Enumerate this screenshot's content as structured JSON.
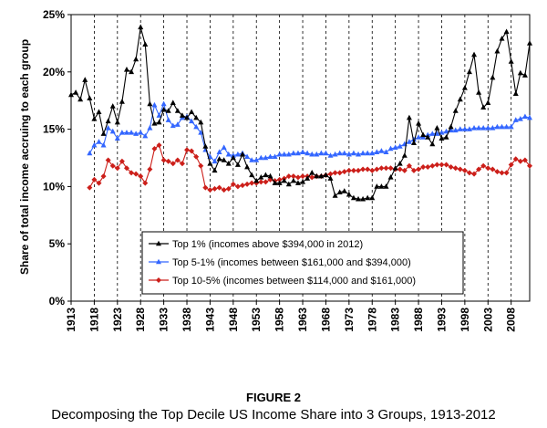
{
  "figure_label": "FIGURE 2",
  "caption": "Decomposing the Top Decile US Income Share into 3 Groups, 1913-2012",
  "chart_data": {
    "type": "line",
    "ylabel": "Share of total income accruing to each group",
    "xlabel": "",
    "ylim": [
      0,
      25
    ],
    "xlim": [
      1913,
      2012
    ],
    "y_ticks": [
      "0%",
      "5%",
      "10%",
      "15%",
      "20%",
      "25%"
    ],
    "y_tick_values": [
      0,
      5,
      10,
      15,
      20,
      25
    ],
    "x_tick_labels": [
      "1913",
      "1918",
      "1923",
      "1928",
      "1933",
      "1938",
      "1943",
      "1948",
      "1953",
      "1958",
      "1963",
      "1968",
      "1973",
      "1978",
      "1983",
      "1988",
      "1993",
      "1998",
      "2003",
      "2008"
    ],
    "x_tick_values": [
      1913,
      1918,
      1923,
      1928,
      1933,
      1938,
      1943,
      1948,
      1953,
      1958,
      1963,
      1968,
      1973,
      1978,
      1983,
      1988,
      1993,
      1998,
      2003,
      2008
    ],
    "grid": "dashed vertical lines at x ticks",
    "legend_position": "bottom-left",
    "series": [
      {
        "name": "Top 1% (incomes above $394,000 in 2012)",
        "color": "#000000",
        "marker": "triangle",
        "x": [
          1913,
          1914,
          1915,
          1916,
          1917,
          1918,
          1919,
          1920,
          1921,
          1922,
          1923,
          1924,
          1925,
          1926,
          1927,
          1928,
          1929,
          1930,
          1931,
          1932,
          1933,
          1934,
          1935,
          1936,
          1937,
          1938,
          1939,
          1940,
          1941,
          1942,
          1943,
          1944,
          1945,
          1946,
          1947,
          1948,
          1949,
          1950,
          1951,
          1952,
          1953,
          1954,
          1955,
          1956,
          1957,
          1958,
          1959,
          1960,
          1961,
          1962,
          1963,
          1964,
          1965,
          1966,
          1967,
          1968,
          1969,
          1970,
          1971,
          1972,
          1973,
          1974,
          1975,
          1976,
          1977,
          1978,
          1979,
          1980,
          1981,
          1982,
          1983,
          1984,
          1985,
          1986,
          1987,
          1988,
          1989,
          1990,
          1991,
          1992,
          1993,
          1994,
          1995,
          1996,
          1997,
          1998,
          1999,
          2000,
          2001,
          2002,
          2003,
          2004,
          2005,
          2006,
          2007,
          2008,
          2009,
          2010,
          2011,
          2012
        ],
        "values": [
          18.0,
          18.2,
          17.6,
          19.3,
          17.7,
          15.9,
          16.5,
          14.6,
          15.7,
          17.0,
          15.6,
          17.4,
          20.2,
          20.0,
          21.1,
          23.9,
          22.4,
          17.2,
          15.5,
          15.6,
          16.7,
          16.6,
          17.3,
          16.6,
          16.2,
          16.0,
          16.5,
          16.0,
          15.6,
          13.5,
          12.0,
          11.4,
          12.4,
          12.3,
          12.0,
          12.5,
          11.9,
          12.8,
          11.7,
          11.0,
          10.5,
          10.8,
          11.0,
          10.9,
          10.3,
          10.3,
          10.5,
          10.2,
          10.5,
          10.3,
          10.4,
          10.7,
          11.2,
          10.9,
          10.9,
          11.0,
          10.7,
          9.2,
          9.5,
          9.6,
          9.3,
          9.0,
          8.9,
          8.9,
          9.0,
          9.0,
          10.0,
          10.0,
          10.0,
          10.8,
          11.6,
          12.0,
          12.7,
          16.0,
          13.8,
          15.5,
          14.5,
          14.3,
          13.7,
          15.1,
          14.2,
          14.3,
          15.2,
          16.6,
          17.6,
          18.6,
          20.0,
          21.5,
          18.2,
          16.9,
          17.3,
          19.5,
          21.8,
          22.9,
          23.5,
          20.9,
          18.1,
          19.9,
          19.7,
          22.5
        ]
      },
      {
        "name": "Top 5-1% (incomes between $161,000 and $394,000)",
        "color": "#3366ff",
        "marker": "triangle",
        "x": [
          1917,
          1918,
          1919,
          1920,
          1921,
          1922,
          1923,
          1924,
          1925,
          1926,
          1927,
          1928,
          1929,
          1930,
          1931,
          1932,
          1933,
          1934,
          1935,
          1936,
          1937,
          1938,
          1939,
          1940,
          1941,
          1942,
          1943,
          1944,
          1945,
          1946,
          1947,
          1948,
          1949,
          1950,
          1951,
          1952,
          1953,
          1954,
          1955,
          1956,
          1957,
          1958,
          1959,
          1960,
          1961,
          1962,
          1963,
          1964,
          1965,
          1966,
          1967,
          1968,
          1969,
          1970,
          1971,
          1972,
          1973,
          1974,
          1975,
          1976,
          1977,
          1978,
          1979,
          1980,
          1981,
          1982,
          1983,
          1984,
          1985,
          1986,
          1987,
          1988,
          1989,
          1990,
          1991,
          1992,
          1993,
          1994,
          1995,
          1996,
          1997,
          1998,
          1999,
          2000,
          2001,
          2002,
          2003,
          2004,
          2005,
          2006,
          2007,
          2008,
          2009,
          2010,
          2011,
          2012
        ],
        "values": [
          12.9,
          13.6,
          13.9,
          13.6,
          15.1,
          14.8,
          14.2,
          14.7,
          14.7,
          14.7,
          14.6,
          14.7,
          14.4,
          15.1,
          17.1,
          16.2,
          17.2,
          15.8,
          15.3,
          15.4,
          16.0,
          16.1,
          15.7,
          15.2,
          14.7,
          13.2,
          12.6,
          12.2,
          13.0,
          13.4,
          12.8,
          12.7,
          12.8,
          12.9,
          12.6,
          12.3,
          12.3,
          12.5,
          12.5,
          12.6,
          12.6,
          12.8,
          12.8,
          12.8,
          12.9,
          12.9,
          13.0,
          12.9,
          12.8,
          12.8,
          12.9,
          12.9,
          12.7,
          12.8,
          12.9,
          12.9,
          12.8,
          12.9,
          12.8,
          12.9,
          12.9,
          12.9,
          13.0,
          13.1,
          13.0,
          13.3,
          13.4,
          13.5,
          13.7,
          13.9,
          14.1,
          14.3,
          14.3,
          14.5,
          14.6,
          14.6,
          14.7,
          14.8,
          14.9,
          14.9,
          15.0,
          15.0,
          15.0,
          15.1,
          15.1,
          15.1,
          15.1,
          15.1,
          15.2,
          15.2,
          15.2,
          15.2,
          15.8,
          15.9,
          16.1,
          16.0
        ]
      },
      {
        "name": "Top 10-5% (incomes between $114,000 and $161,000)",
        "color": "#cc1f1a",
        "marker": "diamond",
        "x": [
          1917,
          1918,
          1919,
          1920,
          1921,
          1922,
          1923,
          1924,
          1925,
          1926,
          1927,
          1928,
          1929,
          1930,
          1931,
          1932,
          1933,
          1934,
          1935,
          1936,
          1937,
          1938,
          1939,
          1940,
          1941,
          1942,
          1943,
          1944,
          1945,
          1946,
          1947,
          1948,
          1949,
          1950,
          1951,
          1952,
          1953,
          1954,
          1955,
          1956,
          1957,
          1958,
          1959,
          1960,
          1961,
          1962,
          1963,
          1964,
          1965,
          1966,
          1967,
          1968,
          1969,
          1970,
          1971,
          1972,
          1973,
          1974,
          1975,
          1976,
          1977,
          1978,
          1979,
          1980,
          1981,
          1982,
          1983,
          1984,
          1985,
          1986,
          1987,
          1988,
          1989,
          1990,
          1991,
          1992,
          1993,
          1994,
          1995,
          1996,
          1997,
          1998,
          1999,
          2000,
          2001,
          2002,
          2003,
          2004,
          2005,
          2006,
          2007,
          2008,
          2009,
          2010,
          2011,
          2012
        ],
        "values": [
          9.9,
          10.6,
          10.3,
          10.9,
          12.3,
          11.8,
          11.6,
          12.2,
          11.6,
          11.2,
          11.1,
          10.9,
          10.3,
          11.5,
          13.3,
          13.6,
          12.3,
          12.2,
          12.0,
          12.3,
          12.0,
          13.2,
          13.1,
          12.6,
          11.8,
          9.9,
          9.7,
          9.8,
          9.9,
          9.7,
          9.8,
          10.2,
          10.0,
          10.1,
          10.2,
          10.3,
          10.3,
          10.4,
          10.4,
          10.6,
          10.5,
          10.6,
          10.7,
          10.9,
          10.9,
          10.8,
          10.9,
          10.9,
          10.8,
          10.9,
          10.9,
          11.0,
          11.1,
          11.2,
          11.2,
          11.3,
          11.4,
          11.4,
          11.4,
          11.5,
          11.5,
          11.4,
          11.5,
          11.6,
          11.6,
          11.6,
          11.5,
          11.5,
          11.4,
          11.8,
          11.4,
          11.5,
          11.7,
          11.7,
          11.8,
          11.9,
          11.9,
          11.9,
          11.7,
          11.6,
          11.5,
          11.4,
          11.2,
          11.1,
          11.5,
          11.8,
          11.6,
          11.5,
          11.3,
          11.2,
          11.2,
          11.9,
          12.4,
          12.2,
          12.3,
          11.8
        ]
      }
    ]
  }
}
